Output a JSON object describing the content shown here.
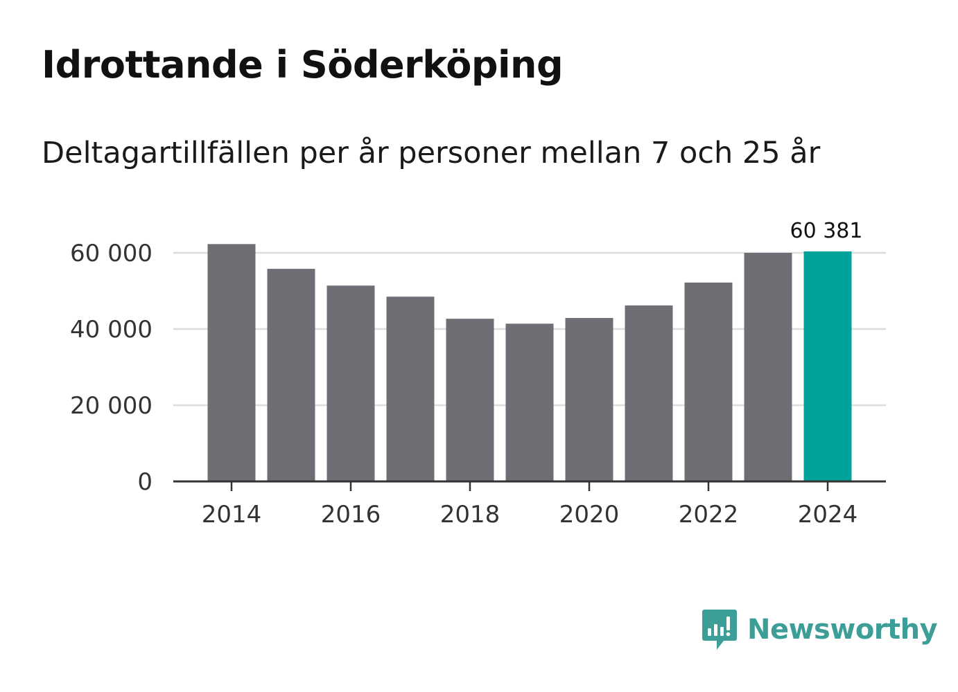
{
  "chart_data": {
    "type": "bar",
    "title": "Idrottande i Söderköping",
    "subtitle": "Deltagartillfällen per år personer mellan 7 och 25 år",
    "categories": [
      "2014",
      "2015",
      "2016",
      "2017",
      "2018",
      "2019",
      "2020",
      "2021",
      "2022",
      "2023",
      "2024"
    ],
    "values": [
      62300,
      55800,
      51400,
      48500,
      42700,
      41400,
      42900,
      46200,
      52200,
      60000,
      60381
    ],
    "x_tick_labels": [
      "2014",
      "2016",
      "2018",
      "2020",
      "2022",
      "2024"
    ],
    "y_ticks": [
      0,
      20000,
      40000,
      60000
    ],
    "y_tick_labels": [
      "0",
      "20 000",
      "40 000",
      "60 000"
    ],
    "ylim": [
      0,
      66000
    ],
    "xlabel": "",
    "ylabel": "",
    "highlight_index": 10,
    "highlight_label": "60 381",
    "grid": true,
    "colors": {
      "bar": "#6f6e74",
      "highlight": "#00a39a",
      "grid": "#dddddd",
      "axis": "#333333"
    }
  },
  "brand": {
    "name": "Newsworthy",
    "logo_color": "#3d9e98"
  }
}
